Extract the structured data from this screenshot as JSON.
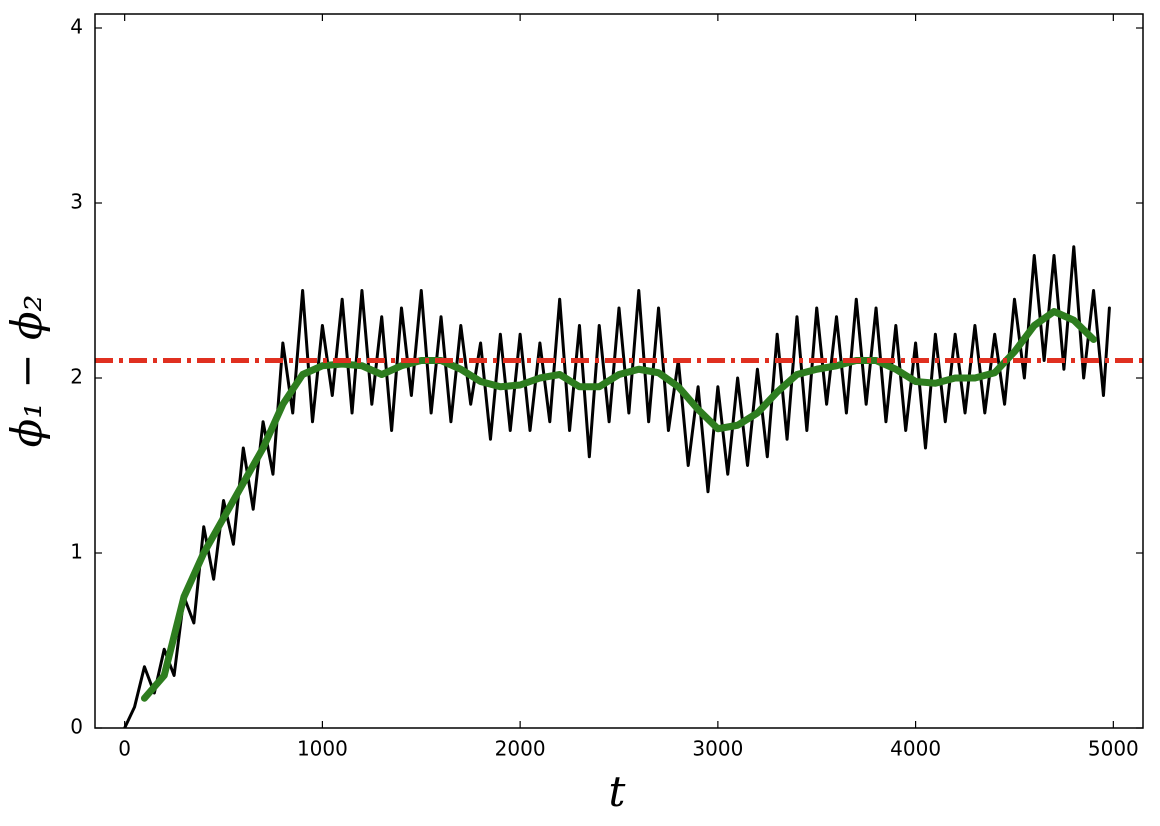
{
  "chart_data": {
    "type": "line",
    "x_label": "t",
    "y_label": "ϕ₁ − ϕ₂",
    "xlim": [
      -150,
      5150
    ],
    "ylim": [
      0,
      4.08
    ],
    "xticks": [
      0,
      1000,
      2000,
      3000,
      4000,
      5000
    ],
    "yticks": [
      0,
      1,
      2,
      3,
      4
    ],
    "grid": false,
    "series": [
      {
        "color": "#000000",
        "x": [
          0,
          50,
          100,
          150,
          200,
          250,
          300,
          350,
          400,
          450,
          500,
          550,
          600,
          650,
          700,
          750,
          800,
          850,
          900,
          950,
          1000,
          1050,
          1100,
          1150,
          1200,
          1250,
          1300,
          1350,
          1400,
          1450,
          1500,
          1550,
          1600,
          1650,
          1700,
          1750,
          1800,
          1850,
          1900,
          1950,
          2000,
          2050,
          2100,
          2150,
          2200,
          2250,
          2300,
          2350,
          2400,
          2450,
          2500,
          2550,
          2600,
          2650,
          2700,
          2750,
          2800,
          2850,
          2900,
          2950,
          3000,
          3050,
          3100,
          3150,
          3200,
          3250,
          3300,
          3350,
          3400,
          3450,
          3500,
          3550,
          3600,
          3650,
          3700,
          3750,
          3800,
          3850,
          3900,
          3950,
          4000,
          4050,
          4100,
          4150,
          4200,
          4250,
          4300,
          4350,
          4400,
          4450,
          4500,
          4550,
          4600,
          4650,
          4700,
          4750,
          4800,
          4850,
          4900,
          4950,
          4980
        ],
        "values": [
          0,
          0.12,
          0.35,
          0.2,
          0.45,
          0.3,
          0.75,
          0.6,
          1.15,
          0.85,
          1.3,
          1.05,
          1.6,
          1.25,
          1.75,
          1.45,
          2.2,
          1.8,
          2.5,
          1.75,
          2.3,
          1.9,
          2.45,
          1.8,
          2.5,
          1.85,
          2.35,
          1.7,
          2.4,
          1.9,
          2.5,
          1.8,
          2.35,
          1.75,
          2.3,
          1.85,
          2.2,
          1.65,
          2.25,
          1.7,
          2.25,
          1.7,
          2.2,
          1.75,
          2.45,
          1.7,
          2.3,
          1.55,
          2.3,
          1.75,
          2.4,
          1.8,
          2.5,
          1.75,
          2.4,
          1.7,
          2.1,
          1.5,
          1.95,
          1.35,
          1.95,
          1.45,
          2.0,
          1.5,
          2.05,
          1.55,
          2.25,
          1.65,
          2.35,
          1.7,
          2.4,
          1.85,
          2.35,
          1.8,
          2.45,
          1.85,
          2.4,
          1.75,
          2.3,
          1.7,
          2.2,
          1.6,
          2.25,
          1.75,
          2.25,
          1.8,
          2.3,
          1.8,
          2.25,
          1.85,
          2.45,
          2.0,
          2.7,
          2.1,
          2.7,
          2.05,
          2.75,
          2.0,
          2.5,
          1.9,
          2.4
        ],
        "width": 3
      },
      {
        "color": "#2e7d1f",
        "x": [
          100,
          200,
          300,
          400,
          500,
          600,
          700,
          800,
          900,
          1000,
          1100,
          1200,
          1300,
          1400,
          1500,
          1600,
          1700,
          1800,
          1900,
          2000,
          2100,
          2200,
          2300,
          2400,
          2500,
          2600,
          2700,
          2800,
          2900,
          3000,
          3100,
          3200,
          3300,
          3400,
          3500,
          3600,
          3700,
          3800,
          3900,
          4000,
          4100,
          4200,
          4300,
          4400,
          4500,
          4600,
          4700,
          4800,
          4900
        ],
        "values": [
          0.17,
          0.3,
          0.75,
          1.0,
          1.2,
          1.4,
          1.6,
          1.85,
          2.02,
          2.07,
          2.08,
          2.07,
          2.02,
          2.07,
          2.1,
          2.1,
          2.05,
          1.98,
          1.95,
          1.96,
          2.0,
          2.02,
          1.95,
          1.95,
          2.02,
          2.05,
          2.03,
          1.95,
          1.82,
          1.71,
          1.73,
          1.8,
          1.92,
          2.02,
          2.05,
          2.07,
          2.1,
          2.1,
          2.05,
          1.98,
          1.97,
          2.0,
          2.0,
          2.03,
          2.15,
          2.3,
          2.38,
          2.33,
          2.22
        ],
        "width": 7
      }
    ],
    "reference_line": {
      "value": 2.1,
      "color": "#e03020"
    }
  }
}
